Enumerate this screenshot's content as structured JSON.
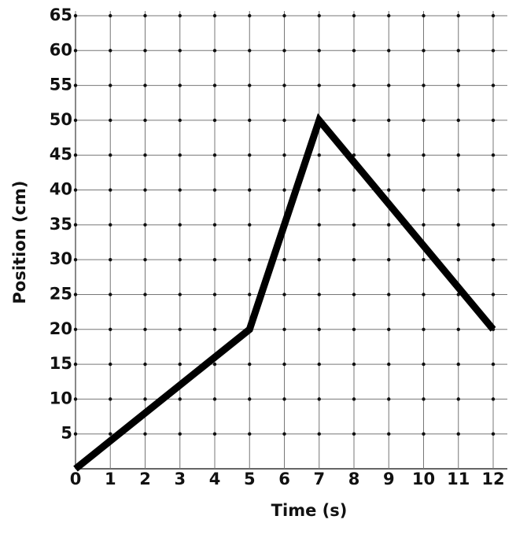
{
  "chart_data": {
    "type": "line",
    "x_label": "Time (s)",
    "y_label": "Position (cm)",
    "x": [
      0,
      5,
      7,
      12
    ],
    "values": [
      0,
      20,
      50,
      20
    ],
    "color": "#000000",
    "xlim": [
      0,
      12
    ],
    "ylim": [
      0,
      65
    ],
    "xticks": [
      0,
      1,
      2,
      3,
      4,
      5,
      6,
      7,
      8,
      9,
      10,
      11,
      12
    ],
    "yticks": [
      5,
      10,
      15,
      20,
      25,
      30,
      35,
      40,
      45,
      50,
      55,
      60,
      65
    ],
    "grid": true
  }
}
